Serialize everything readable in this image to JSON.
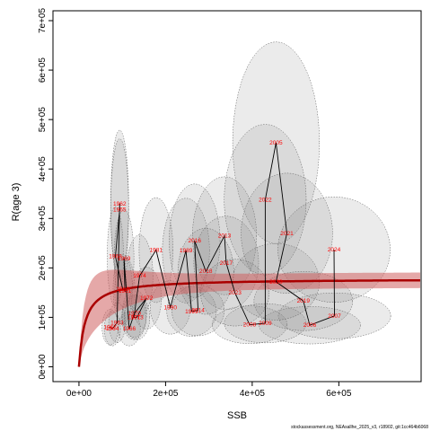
{
  "chart_data": {
    "type": "scatter",
    "title": "",
    "xlabel": "SSB",
    "ylabel": "R(age 3)",
    "xlim": [
      -60000,
      790000
    ],
    "ylim": [
      -30000,
      720000
    ],
    "x_ticks": [
      0,
      200000,
      400000,
      600000
    ],
    "x_tick_labels": [
      "0e+00",
      "2e+05",
      "4e+05",
      "6e+05"
    ],
    "y_ticks": [
      0,
      100000,
      200000,
      300000,
      400000,
      500000,
      600000,
      700000
    ],
    "y_tick_labels": [
      "0e+00",
      "1e+05",
      "2e+05",
      "3e+05",
      "4e+05",
      "5e+05",
      "6e+05",
      "7e+05"
    ],
    "footer": "stockassessment.org, NEAsallhe_2025_v3, r18902, git:1cc464b6068",
    "colors": {
      "curve": "#aa0000",
      "band": "#d06060",
      "labels": "#ff0000",
      "ellipses": "#808080",
      "path": "#000000"
    },
    "sr_curve": {
      "model": "beverton-holt",
      "asymptote": 178000,
      "half_ssb": 14000
    },
    "points": [
      {
        "year": "1960",
        "ssb": 101000,
        "rec": 157000
      },
      {
        "year": "1961",
        "ssb": 106000,
        "rec": 153000
      },
      {
        "year": "1962",
        "ssb": 94000,
        "rec": 330000
      },
      {
        "year": "1963",
        "ssb": 88000,
        "rec": 89000
      },
      {
        "year": "1964",
        "ssb": 77000,
        "rec": 77000
      },
      {
        "year": "1965",
        "ssb": 94000,
        "rec": 318000
      },
      {
        "year": "1966",
        "ssb": 116000,
        "rec": 77000
      },
      {
        "year": "1967",
        "ssb": 72000,
        "rec": 80000
      },
      {
        "year": "1968",
        "ssb": 84000,
        "rec": 223000
      },
      {
        "year": "1969",
        "ssb": 104000,
        "rec": 219000
      },
      {
        "year": "1970",
        "ssb": 128000,
        "rec": 108000
      },
      {
        "year": "1971",
        "ssb": 127000,
        "rec": 100000
      },
      {
        "year": "1972",
        "ssb": 156000,
        "rec": 139000
      },
      {
        "year": "1973",
        "ssb": 134000,
        "rec": 100000
      },
      {
        "year": "1974",
        "ssb": 140000,
        "rec": 184000
      },
      {
        "year": "1981",
        "ssb": 178000,
        "rec": 236000
      },
      {
        "year": "1989",
        "ssb": 247000,
        "rec": 235000
      },
      {
        "year": "1990",
        "ssb": 211000,
        "rec": 120000
      },
      {
        "year": "1999",
        "ssb": 260000,
        "rec": 112000
      },
      {
        "year": "2005",
        "ssb": 455000,
        "rec": 453000
      },
      {
        "year": "2006",
        "ssb": 533000,
        "rec": 84000
      },
      {
        "year": "2007",
        "ssb": 590000,
        "rec": 103000
      },
      {
        "year": "2008",
        "ssb": 394000,
        "rec": 85000
      },
      {
        "year": "2009",
        "ssb": 430000,
        "rec": 88000
      },
      {
        "year": "2013",
        "ssb": 336000,
        "rec": 265000
      },
      {
        "year": "2014",
        "ssb": 275000,
        "rec": 114000
      },
      {
        "year": "2016",
        "ssb": 267000,
        "rec": 255000
      },
      {
        "year": "2017",
        "ssb": 340000,
        "rec": 210000
      },
      {
        "year": "2018",
        "ssb": 293000,
        "rec": 193000
      },
      {
        "year": "2019",
        "ssb": 518000,
        "rec": 133000
      },
      {
        "year": "2020",
        "ssb": 455000,
        "rec": 172000
      },
      {
        "year": "2021",
        "ssb": 480000,
        "rec": 270000
      },
      {
        "year": "2022",
        "ssb": 430000,
        "rec": 338000
      },
      {
        "year": "2023",
        "ssb": 360000,
        "rec": 150000
      },
      {
        "year": "2024",
        "ssb": 589000,
        "rec": 237000
      }
    ],
    "path_order": [
      "1967",
      "1964",
      "1963",
      "1962",
      "1965",
      "1968",
      "1960",
      "1961",
      "1969",
      "1966",
      "1970",
      "1972",
      "1973",
      "1971",
      "1974",
      "1981",
      "1990",
      "1989",
      "1999",
      "2014",
      "2016",
      "2018",
      "2013",
      "2017",
      "2023",
      "2008",
      "2009",
      "2022",
      "2005",
      "2021",
      "2020",
      "2019",
      "2006",
      "2007",
      "2024"
    ]
  }
}
